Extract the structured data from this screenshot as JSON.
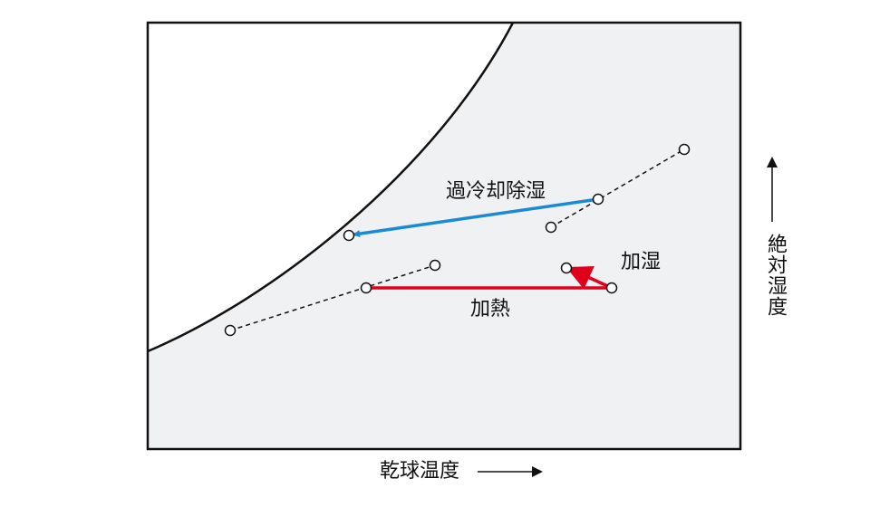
{
  "diagram": {
    "processes": [
      {
        "label": "過冷却除湿"
      },
      {
        "label": "加湿"
      },
      {
        "label": "加熱"
      }
    ],
    "x_axis_label": "乾球温度",
    "y_axis_label": "絶対湿度"
  }
}
